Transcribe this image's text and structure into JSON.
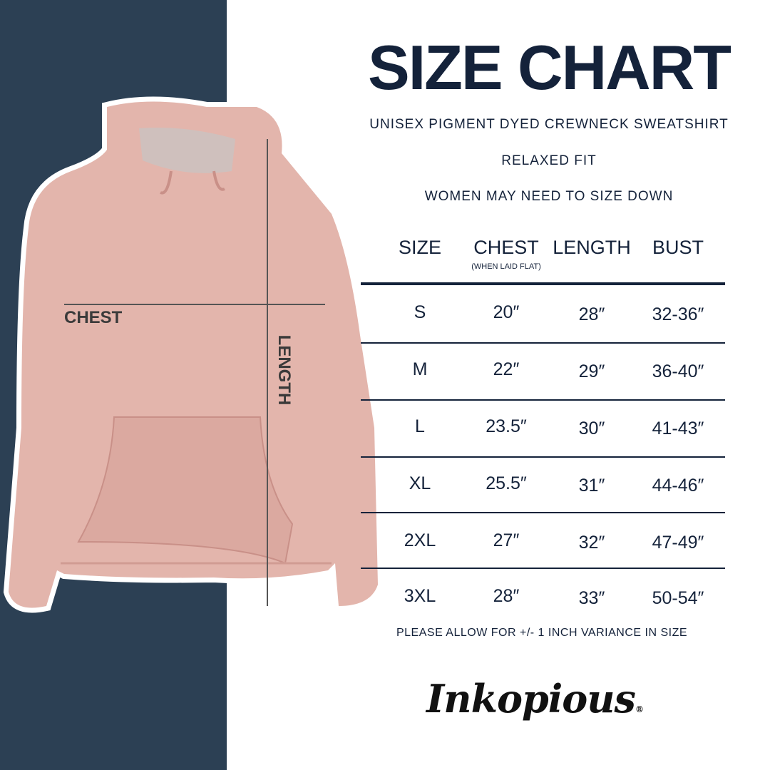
{
  "title": "SIZE CHART",
  "subtitle": "UNISEX PIGMENT DYED CREWNECK SWEATSHIRT",
  "fit": "RELAXED FIT",
  "advice": "WOMEN MAY NEED TO SIZE DOWN",
  "diagram": {
    "chest_label": "CHEST",
    "length_label": "LENGTH"
  },
  "colors": {
    "navy_panel": "#2c4054",
    "text": "#14223a",
    "garment": "#e3b5ac"
  },
  "table": {
    "headers": [
      "SIZE",
      "CHEST",
      "LENGTH",
      "BUST"
    ],
    "chest_note": "(WHEN LAID FLAT)",
    "rows": [
      [
        "S",
        "20″",
        "28″",
        "32-36″"
      ],
      [
        "M",
        "22″",
        "29″",
        "36-40″"
      ],
      [
        "L",
        "23.5″",
        "30″",
        "41-43″"
      ],
      [
        "XL",
        "25.5″",
        "31″",
        "44-46″"
      ],
      [
        "2XL",
        "27″",
        "32″",
        "47-49″"
      ],
      [
        "3XL",
        "28″",
        "33″",
        "50-54″"
      ]
    ]
  },
  "footnote": "PLEASE ALLOW FOR +/- 1 INCH VARIANCE IN SIZE",
  "logo": "Inkopious"
}
